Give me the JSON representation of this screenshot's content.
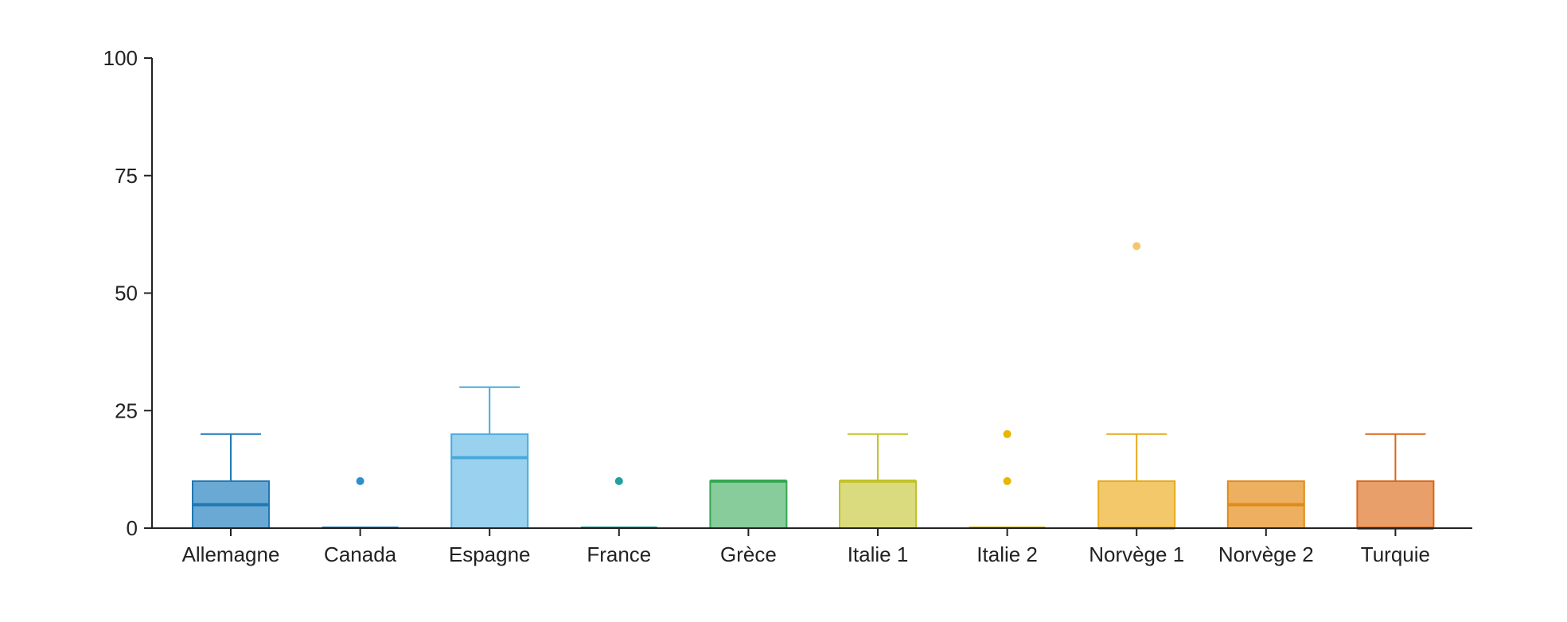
{
  "chart_data": {
    "type": "box",
    "title": "",
    "xlabel": "",
    "ylabel": "",
    "ylim": [
      0,
      100
    ],
    "yticks": [
      0,
      25,
      50,
      75,
      100
    ],
    "ytick_labels": [
      "0",
      "25",
      "50",
      "75",
      "100"
    ],
    "grid": false,
    "legend": "none",
    "categories": [
      "Allemagne",
      "Canada",
      "Espagne",
      "France",
      "Grèce",
      "Italie 1",
      "Italie 2",
      "Norvège 1",
      "Norvège 2",
      "Turquie"
    ],
    "boxes": [
      {
        "category": "Allemagne",
        "min": 0,
        "q1": 0,
        "median": 5,
        "q3": 10,
        "max": 20,
        "outliers": [],
        "color": "#1f78b4",
        "fill": "#6aa9d4"
      },
      {
        "category": "Canada",
        "min": 0,
        "q1": 0,
        "median": 0,
        "q3": 0,
        "max": 0,
        "outliers": [
          10
        ],
        "color": "#1f78b4",
        "fill": "#2f8fca"
      },
      {
        "category": "Espagne",
        "min": 0,
        "q1": 0,
        "median": 15,
        "q3": 20,
        "max": 30,
        "outliers": [],
        "color": "#4aa9dc",
        "fill": "#99d1ee"
      },
      {
        "category": "France",
        "min": 0,
        "q1": 0,
        "median": 0,
        "q3": 0,
        "max": 0,
        "outliers": [
          10
        ],
        "color": "#1a8f8f",
        "fill": "#21a0a0"
      },
      {
        "category": "Grèce",
        "min": 0,
        "q1": 0,
        "median": 10,
        "q3": 10,
        "max": 10,
        "outliers": [],
        "color": "#35a853",
        "fill": "#88cc9c"
      },
      {
        "category": "Italie 1",
        "min": 0,
        "q1": 0,
        "median": 10,
        "q3": 10,
        "max": 20,
        "outliers": [],
        "color": "#c2c22a",
        "fill": "#dada7e"
      },
      {
        "category": "Italie 2",
        "min": 0,
        "q1": 0,
        "median": 0,
        "q3": 0,
        "max": 0,
        "outliers": [
          10,
          20
        ],
        "color": "#d4a800",
        "fill": "#e6b800"
      },
      {
        "category": "Norvège 1",
        "min": 0,
        "q1": 0,
        "median": 0,
        "q3": 10,
        "max": 20,
        "outliers": [
          60
        ],
        "color": "#e6a91a",
        "fill": "#f2c86a"
      },
      {
        "category": "Norvège 2",
        "min": 0,
        "q1": 0,
        "median": 5,
        "q3": 10,
        "max": 10,
        "outliers": [],
        "color": "#e08a1a",
        "fill": "#ecb060"
      },
      {
        "category": "Turquie",
        "min": 0,
        "q1": 0,
        "median": 0,
        "q3": 10,
        "max": 20,
        "outliers": [],
        "color": "#d9661c",
        "fill": "#e89f6a"
      }
    ]
  }
}
